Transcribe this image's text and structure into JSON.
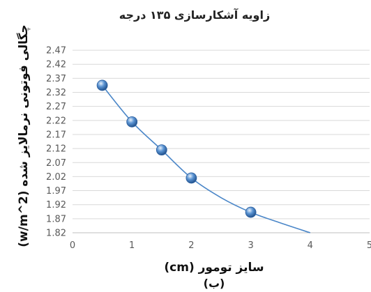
{
  "chart_data": {
    "type": "line",
    "title": "زاویه آشکارسازی ۱۳۵ درجه",
    "xlabel": "سایز تومور (cm)",
    "ylabel": "چگالی فوتونی نرمالایز شده (w/m^2)",
    "caption": "(ب)",
    "xlim": [
      0,
      5
    ],
    "ylim": [
      1.82,
      2.5
    ],
    "x_ticks": [
      0,
      1,
      2,
      3,
      4,
      5
    ],
    "y_ticks": [
      1.82,
      1.87,
      1.92,
      1.97,
      2.02,
      2.07,
      2.12,
      2.17,
      2.22,
      2.27,
      2.32,
      2.37,
      2.42,
      2.47
    ],
    "grid": true,
    "legend": "none",
    "series": [
      {
        "x": [
          0.5,
          1,
          1.5,
          2,
          3
        ],
        "y": [
          2.345,
          2.215,
          2.115,
          2.015,
          1.893
        ],
        "color": "#4a86c8"
      }
    ],
    "trend_curve": {
      "x": [
        0.5,
        1,
        1.5,
        2,
        2.5,
        3,
        3.5,
        4
      ],
      "y": [
        2.345,
        2.215,
        2.115,
        2.015,
        1.945,
        1.893,
        1.855,
        1.82
      ]
    }
  }
}
